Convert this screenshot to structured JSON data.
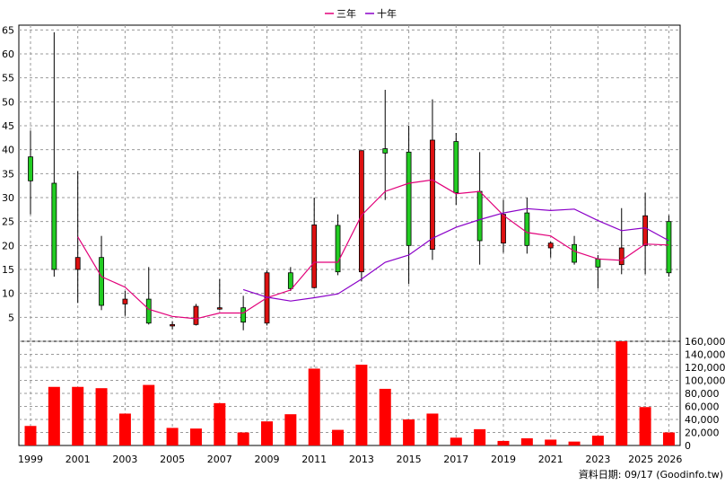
{
  "legend": [
    {
      "name": "三年",
      "color": "#e2007a"
    },
    {
      "name": "十年",
      "color": "#8a00c8"
    }
  ],
  "footer": {
    "source": "資料日期: 09/17  (Goodinfo.tw)"
  },
  "chart_data": {
    "type": "candlestick+bar",
    "price_axis": {
      "ylim": [
        0,
        66
      ],
      "ticks": [
        5,
        10,
        15,
        20,
        25,
        30,
        35,
        40,
        45,
        50,
        55,
        60,
        65
      ]
    },
    "volume_axis": {
      "ylim": [
        0,
        160000
      ],
      "ticks": [
        "0",
        "20,000",
        "40,000",
        "60,000",
        "80,000",
        "100,000",
        "120,000",
        "140,000",
        "160,000"
      ],
      "tick_values": [
        0,
        20000,
        40000,
        60000,
        80000,
        100000,
        120000,
        140000,
        160000
      ]
    },
    "x_ticks": [
      "1999",
      "2001",
      "2003",
      "2005",
      "2007",
      "2009",
      "2011",
      "2013",
      "2015",
      "2017",
      "2019",
      "2021",
      "2023",
      "2025",
      "2026"
    ],
    "years": [
      1999,
      2000,
      2001,
      2002,
      2003,
      2004,
      2005,
      2006,
      2007,
      2008,
      2009,
      2010,
      2011,
      2012,
      2013,
      2014,
      2015,
      2016,
      2017,
      2018,
      2019,
      2020,
      2021,
      2022,
      2023,
      2024,
      2025,
      2026
    ],
    "candles": [
      {
        "open": 33.5,
        "close": 38.5,
        "high": 44,
        "low": 26.5
      },
      {
        "open": 15,
        "close": 33,
        "high": 64.5,
        "low": 13.5
      },
      {
        "open": 17.5,
        "close": 15,
        "high": 35.5,
        "low": 8
      },
      {
        "open": 7.5,
        "close": 17.5,
        "high": 22,
        "low": 6.5
      },
      {
        "open": 8.8,
        "close": 7.8,
        "high": 10.5,
        "low": 5.3
      },
      {
        "open": 3.8,
        "close": 8.8,
        "high": 15.5,
        "low": 3.5
      },
      {
        "open": 3.5,
        "close": 3.2,
        "high": 4.2,
        "low": 2.5
      },
      {
        "open": 7.3,
        "close": 3.5,
        "high": 7.8,
        "low": 3.3
      },
      {
        "open": 7,
        "close": 6.8,
        "high": 13,
        "low": 6.5
      },
      {
        "open": 4,
        "close": 7,
        "high": 9.5,
        "low": 2.3
      },
      {
        "open": 14.3,
        "close": 3.8,
        "high": 14.8,
        "low": 3.3
      },
      {
        "open": 11,
        "close": 14.3,
        "high": 15.5,
        "low": 10.5
      },
      {
        "open": 24.3,
        "close": 11.2,
        "high": 30,
        "low": 11
      },
      {
        "open": 14.5,
        "close": 24.2,
        "high": 26.5,
        "low": 13.8
      },
      {
        "open": 39.8,
        "close": 14.5,
        "high": 39.8,
        "low": 12.5
      },
      {
        "open": 39.3,
        "close": 40.2,
        "high": 52.5,
        "low": 29.5
      },
      {
        "open": 20,
        "close": 39.5,
        "high": 45,
        "low": 12
      },
      {
        "open": 42,
        "close": 19.2,
        "high": 50.5,
        "low": 17
      },
      {
        "open": 31,
        "close": 41.7,
        "high": 43.5,
        "low": 28.5
      },
      {
        "open": 21,
        "close": 31.3,
        "high": 39.5,
        "low": 16
      },
      {
        "open": 26.5,
        "close": 20.5,
        "high": 29.5,
        "low": 18.5
      },
      {
        "open": 20,
        "close": 26.8,
        "high": 30,
        "low": 18.3
      },
      {
        "open": 20.5,
        "close": 19.5,
        "high": 20.8,
        "low": 17.5
      },
      {
        "open": 16.5,
        "close": 20.2,
        "high": 22,
        "low": 16
      },
      {
        "open": 15.5,
        "close": 17.2,
        "high": 18,
        "low": 11
      },
      {
        "open": 19.5,
        "close": 16,
        "high": 27.8,
        "low": 14
      },
      {
        "open": 26.2,
        "close": 20,
        "high": 31,
        "low": 14
      },
      {
        "open": 14.3,
        "close": 25,
        "high": 26.3,
        "low": 13.5
      }
    ],
    "ma3": [
      null,
      null,
      21.8,
      13.5,
      11.3,
      6.7,
      5.2,
      4.7,
      5.9,
      5.9,
      9.1,
      10.7,
      16.5,
      16.5,
      26.3,
      31.3,
      33,
      33.7,
      30.8,
      31.3,
      26.3,
      22.7,
      22,
      18.8,
      17.2,
      16.9,
      20.3,
      20.1
    ],
    "ma10": [
      null,
      null,
      null,
      null,
      null,
      null,
      null,
      null,
      null,
      10.8,
      9.2,
      8.4,
      9.1,
      9.9,
      13,
      16.5,
      18,
      21.5,
      23.8,
      25.4,
      26.8,
      27.7,
      27.3,
      27.6,
      25.2,
      23.1,
      23.7,
      21
    ],
    "volume": [
      30000,
      90000,
      90000,
      88000,
      49000,
      93000,
      27000,
      26000,
      65000,
      20000,
      37000,
      48000,
      118000,
      24000,
      124000,
      87000,
      40000,
      49000,
      12000,
      25000,
      7000,
      11000,
      9000,
      6000,
      15000,
      160000,
      59000,
      20000
    ]
  }
}
